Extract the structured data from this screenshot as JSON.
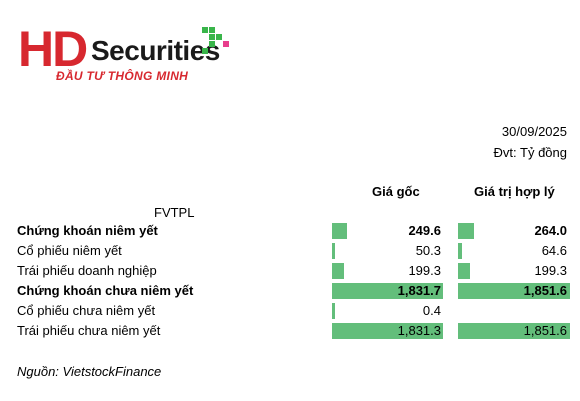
{
  "logo": {
    "brand_hd": "HD",
    "brand_securities": "Securities",
    "tagline": "ĐẦU TƯ THÔNG MINH"
  },
  "header": {
    "date": "30/09/2025",
    "unit": "Đvt: Tỷ đồng"
  },
  "table": {
    "company": "FVTPL",
    "columns": [
      "Giá gốc",
      "Giá trị hợp lý"
    ],
    "rows": [
      {
        "label": "Chứng khoán niêm yết",
        "bold": true,
        "cost": "249.6",
        "cost_value": 249.6,
        "fair": "264.0",
        "fair_value": 264.0
      },
      {
        "label": "Cổ phiếu niêm yết",
        "bold": false,
        "cost": "50.3",
        "cost_value": 50.3,
        "fair": "64.6",
        "fair_value": 64.6
      },
      {
        "label": "Trái phiếu doanh nghiệp",
        "bold": false,
        "cost": "199.3",
        "cost_value": 199.3,
        "fair": "199.3",
        "fair_value": 199.3
      },
      {
        "label": "Chứng khoán chưa niêm yết",
        "bold": true,
        "cost": "1,831.7",
        "cost_value": 1831.7,
        "fair": "1,851.6",
        "fair_value": 1851.6
      },
      {
        "label": "Cổ phiếu chưa niêm yết",
        "bold": false,
        "cost": "0.4",
        "cost_value": 0.4,
        "fair": "",
        "fair_value": 0
      },
      {
        "label": "Trái phiếu chưa niêm yết",
        "bold": false,
        "cost": "1,831.3",
        "cost_value": 1831.3,
        "fair": "1,851.6",
        "fair_value": 1851.6
      }
    ]
  },
  "source": "Nguồn: VietstockFinance",
  "colors": {
    "bar": "#63be7b",
    "brand_red": "#d7282f",
    "brand_green": "#39b54a",
    "brand_pink": "#e83e8c"
  }
}
